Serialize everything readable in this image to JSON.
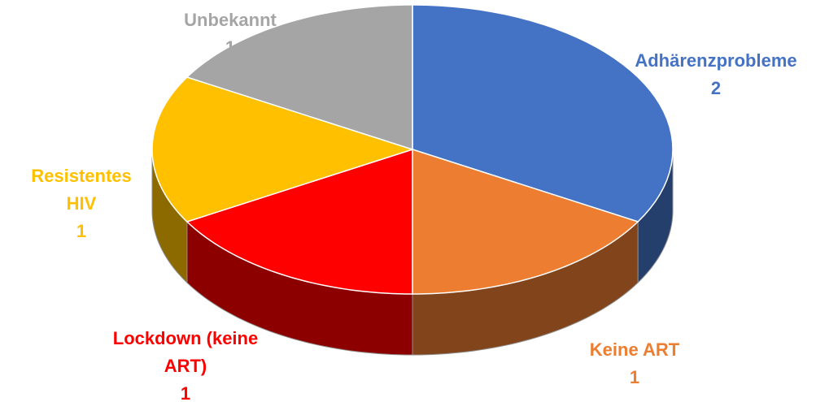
{
  "chart_data": {
    "type": "pie",
    "three_d": true,
    "categories": [
      "Adhärenzprobleme",
      "Keine ART",
      "Lockdown (keine ART)",
      "Resistentes HIV",
      "Unbekannt"
    ],
    "values": [
      2,
      1,
      1,
      1,
      1
    ],
    "colors": [
      "#4472c4",
      "#ed7d31",
      "#ff0000",
      "#ffc000",
      "#a5a5a5"
    ]
  }
}
